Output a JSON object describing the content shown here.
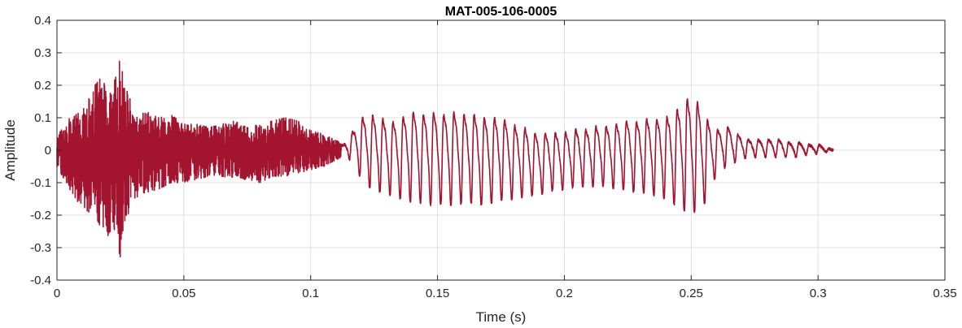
{
  "chart_data": {
    "type": "line",
    "title": "MAT-005-106-0005",
    "xlabel": "Time (s)",
    "ylabel": "Amplitude",
    "xlim": [
      0,
      0.35
    ],
    "ylim": [
      -0.4,
      0.4
    ],
    "x_ticks": [
      0,
      0.05,
      0.1,
      0.15,
      0.2,
      0.25,
      0.3,
      0.35
    ],
    "x_tick_labels": [
      "0",
      "0.05",
      "0.1",
      "0.15",
      "0.2",
      "0.25",
      "0.3",
      "0.35"
    ],
    "y_ticks": [
      0.4,
      0.3,
      0.2,
      0.1,
      0,
      -0.1,
      -0.2,
      -0.3,
      -0.4
    ],
    "y_tick_labels": [
      "0.4",
      "0.3",
      "0.2",
      "0.1",
      "0",
      "-0.1",
      "-0.2",
      "-0.3",
      "-0.4"
    ],
    "grid": true,
    "series": [
      {
        "color": "#A2142F",
        "x": [
          0,
          0.005,
          0.01,
          0.015,
          0.018,
          0.02,
          0.022,
          0.024,
          0.025,
          0.026,
          0.027,
          0.028,
          0.03,
          0.035,
          0.04,
          0.045,
          0.05,
          0.055,
          0.06,
          0.065,
          0.07,
          0.075,
          0.08,
          0.085,
          0.09,
          0.095,
          0.1,
          0.105,
          0.11,
          0.1125,
          0.1165,
          0.1205,
          0.1245,
          0.1285,
          0.1325,
          0.1365,
          0.1405,
          0.1445,
          0.1485,
          0.1525,
          0.1565,
          0.1605,
          0.1645,
          0.1685,
          0.1725,
          0.1765,
          0.1805,
          0.1845,
          0.1885,
          0.1925,
          0.1965,
          0.2005,
          0.2045,
          0.2085,
          0.2125,
          0.2165,
          0.2205,
          0.2245,
          0.2285,
          0.2325,
          0.2365,
          0.2405,
          0.2445,
          0.2485,
          0.2525,
          0.2565,
          0.2605,
          0.2645,
          0.2685,
          0.2725,
          0.2765,
          0.2805,
          0.2845,
          0.2885,
          0.2925,
          0.2965,
          0.3005,
          0.306
        ],
        "y_max": [
          0.05,
          0.1,
          0.12,
          0.2,
          0.23,
          0.15,
          0.2,
          0.28,
          0.3,
          0.24,
          0.16,
          0.2,
          0.12,
          0.12,
          0.1,
          0.11,
          0.08,
          0.08,
          0.07,
          0.08,
          0.09,
          0.07,
          0.08,
          0.09,
          0.1,
          0.09,
          0.06,
          0.05,
          0.03,
          0.02,
          0.07,
          0.13,
          0.14,
          0.13,
          0.12,
          0.14,
          0.16,
          0.15,
          0.16,
          0.15,
          0.16,
          0.15,
          0.15,
          0.14,
          0.14,
          0.13,
          0.11,
          0.1,
          0.08,
          0.08,
          0.08,
          0.08,
          0.09,
          0.09,
          0.1,
          0.1,
          0.11,
          0.12,
          0.12,
          0.13,
          0.13,
          0.14,
          0.17,
          0.21,
          0.2,
          0.13,
          0.08,
          0.09,
          0.06,
          0.04,
          0.04,
          0.04,
          0.04,
          0.03,
          0.03,
          0.02,
          0.02,
          0.0
        ],
        "y_min": [
          -0.05,
          -0.12,
          -0.18,
          -0.2,
          -0.25,
          -0.28,
          -0.22,
          -0.3,
          -0.33,
          -0.27,
          -0.2,
          -0.2,
          -0.15,
          -0.13,
          -0.12,
          -0.1,
          -0.1,
          -0.09,
          -0.08,
          -0.08,
          -0.09,
          -0.09,
          -0.1,
          -0.08,
          -0.08,
          -0.07,
          -0.06,
          -0.05,
          -0.03,
          -0.02,
          -0.03,
          -0.1,
          -0.12,
          -0.13,
          -0.14,
          -0.15,
          -0.16,
          -0.16,
          -0.17,
          -0.16,
          -0.17,
          -0.16,
          -0.16,
          -0.17,
          -0.16,
          -0.15,
          -0.15,
          -0.14,
          -0.14,
          -0.13,
          -0.12,
          -0.12,
          -0.11,
          -0.11,
          -0.11,
          -0.11,
          -0.12,
          -0.12,
          -0.13,
          -0.13,
          -0.14,
          -0.15,
          -0.17,
          -0.19,
          -0.19,
          -0.15,
          -0.06,
          -0.05,
          -0.03,
          -0.02,
          -0.02,
          -0.02,
          -0.02,
          -0.02,
          -0.02,
          -0.01,
          -0.01,
          0.0
        ],
        "noisy_until": 0.112,
        "pitch_period": 0.004
      }
    ]
  }
}
